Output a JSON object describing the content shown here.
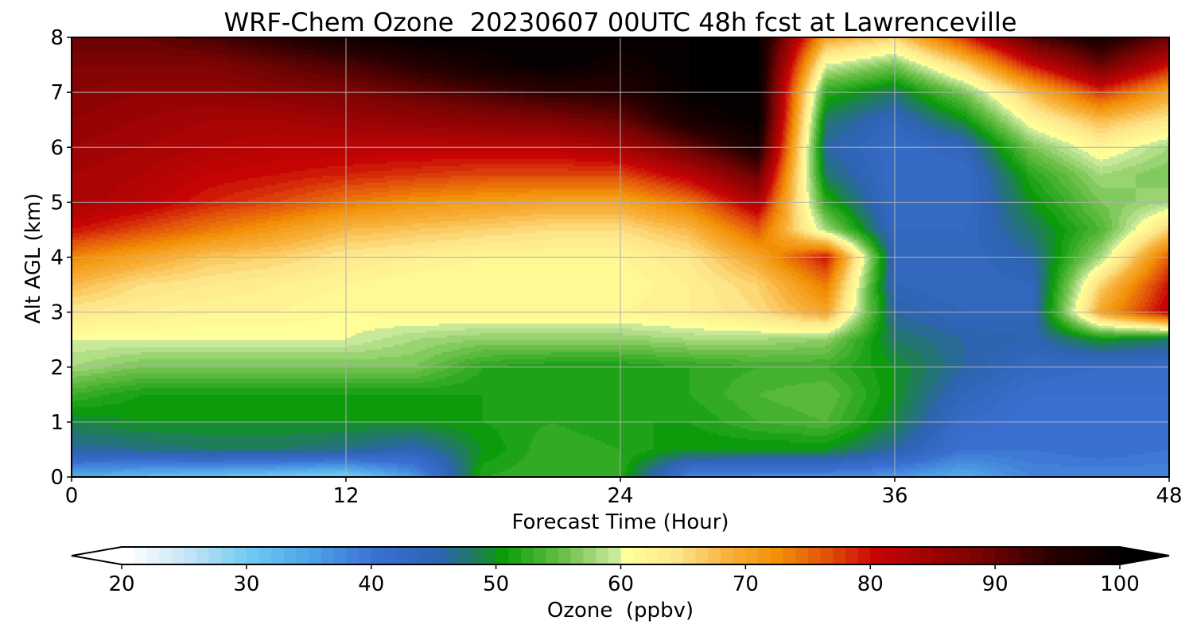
{
  "chart_data": [
    {
      "type": "heatmap",
      "title": "WRF-Chem Ozone  20230607 00UTC 48h fcst at Lawrenceville",
      "xlabel": "Forecast Time (Hour)",
      "ylabel": "Alt AGL (km)",
      "xlim": [
        0,
        48
      ],
      "ylim": [
        0,
        8
      ],
      "x_ticks": [
        0,
        12,
        24,
        36,
        48
      ],
      "y_ticks": [
        0,
        1,
        2,
        3,
        4,
        5,
        6,
        7,
        8
      ],
      "grid": true,
      "x_hours": [
        0,
        3,
        6,
        9,
        12,
        15,
        18,
        21,
        24,
        27,
        30,
        33,
        36,
        39,
        42,
        45,
        48
      ],
      "z_km": [
        0,
        0.5,
        1,
        1.5,
        2,
        2.5,
        3,
        3.5,
        4,
        4.5,
        5,
        5.5,
        6,
        6.5,
        7,
        7.5,
        8
      ],
      "values": [
        [
          34,
          32,
          31,
          30,
          29,
          36,
          52,
          53,
          52,
          38,
          37,
          37,
          36,
          34,
          38,
          38,
          38
        ],
        [
          46,
          47,
          48,
          48,
          47,
          45,
          50,
          53,
          52,
          50,
          50,
          50,
          46,
          40,
          40,
          41,
          40
        ],
        [
          49,
          50,
          50,
          50,
          50,
          50,
          51,
          52,
          51,
          51,
          53,
          54,
          49,
          42,
          40,
          41,
          40
        ],
        [
          53,
          51,
          51,
          51,
          51,
          51,
          51,
          52,
          52,
          52,
          54,
          55,
          50,
          44,
          41,
          41,
          41
        ],
        [
          58,
          56,
          56,
          56,
          56,
          56,
          52,
          51,
          51,
          52,
          53,
          53,
          50,
          46,
          43,
          42,
          42
        ],
        [
          60,
          60,
          60,
          60,
          60,
          58,
          57,
          57,
          57,
          58,
          58,
          57,
          48,
          46,
          45,
          50,
          48
        ],
        [
          64,
          63,
          62,
          62,
          61,
          62,
          62,
          62,
          62,
          63,
          65,
          70,
          46,
          44,
          44,
          70,
          82
        ],
        [
          68,
          65,
          64,
          63,
          62,
          61,
          61,
          61,
          61,
          63,
          66,
          74,
          44,
          43,
          44,
          66,
          80
        ],
        [
          73,
          70,
          67,
          66,
          64,
          63,
          62,
          62,
          62,
          64,
          70,
          80,
          44,
          43,
          46,
          58,
          76
        ],
        [
          80,
          77,
          74,
          71,
          68,
          67,
          66,
          65,
          65,
          68,
          76,
          58,
          43,
          43,
          48,
          54,
          66
        ],
        [
          84,
          82,
          79,
          77,
          74,
          72,
          71,
          70,
          70,
          74,
          83,
          52,
          42,
          42,
          50,
          56,
          58
        ],
        [
          84,
          83,
          81,
          80,
          79,
          78,
          77,
          77,
          77,
          82,
          90,
          48,
          42,
          42,
          52,
          58,
          56
        ],
        [
          85,
          84,
          83,
          82,
          82,
          82,
          82,
          82,
          84,
          90,
          97,
          46,
          42,
          44,
          56,
          62,
          58
        ],
        [
          86,
          85,
          84,
          84,
          85,
          86,
          87,
          88,
          90,
          97,
          100,
          48,
          44,
          50,
          62,
          68,
          64
        ],
        [
          87,
          86,
          86,
          87,
          88,
          90,
          92,
          94,
          95,
          100,
          100,
          52,
          48,
          56,
          68,
          78,
          70
        ],
        [
          88,
          88,
          88,
          90,
          92,
          95,
          98,
          100,
          98,
          100,
          100,
          60,
          56,
          66,
          80,
          90,
          80
        ],
        [
          90,
          90,
          92,
          95,
          98,
          100,
          100,
          100,
          100,
          100,
          100,
          70,
          66,
          78,
          92,
          97,
          90
        ]
      ]
    },
    {
      "type": "colorbar",
      "xlabel": "Ozone  (ppbv)",
      "ticks": [
        20,
        30,
        40,
        50,
        60,
        70,
        80,
        90,
        100
      ],
      "vmin": 20,
      "vmax": 100,
      "step": 1,
      "extend": "both",
      "colorstops": [
        [
          20,
          "#ffffff"
        ],
        [
          24,
          "#cfe9f7"
        ],
        [
          30,
          "#6ec8f2"
        ],
        [
          35,
          "#4d9fe6"
        ],
        [
          40,
          "#3a6fd2"
        ],
        [
          45,
          "#2e64b0"
        ],
        [
          48,
          "#1f7d5a"
        ],
        [
          50,
          "#0b9b0b"
        ],
        [
          55,
          "#6cc04a"
        ],
        [
          59,
          "#c8e89a"
        ],
        [
          60,
          "#ffff99"
        ],
        [
          64,
          "#fde58a"
        ],
        [
          68,
          "#f8b23c"
        ],
        [
          72,
          "#f28f06"
        ],
        [
          76,
          "#e2520b"
        ],
        [
          80,
          "#c70404"
        ],
        [
          88,
          "#7a0303"
        ],
        [
          94,
          "#2a0000"
        ],
        [
          100,
          "#000000"
        ]
      ]
    }
  ]
}
